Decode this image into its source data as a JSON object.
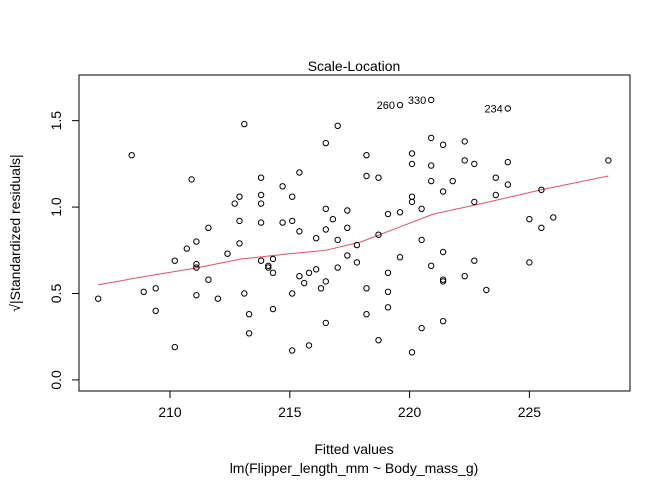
{
  "chart_data": {
    "type": "scatter",
    "title": "Scale-Location",
    "xlabel": "Fitted values",
    "subtitle": "lm(Flipper_length_mm ~ Body_mass_g)",
    "ylabel": "√|Standardized residuals|",
    "xlim": [
      206.2,
      229.2
    ],
    "ylim": [
      -0.064,
      1.764
    ],
    "x_ticks": [
      210,
      215,
      220,
      225
    ],
    "y_ticks": [
      0.0,
      0.5,
      1.0,
      1.5
    ],
    "x_tick_labels": [
      "210",
      "215",
      "220",
      "225"
    ],
    "y_tick_labels": [
      "0.0",
      "0.5",
      "1.0",
      "1.5"
    ],
    "grid": false,
    "point_color": "#000000",
    "smooth_color": "#DF536B",
    "points": [
      {
        "x": 207.0,
        "y": 0.47
      },
      {
        "x": 208.4,
        "y": 1.3
      },
      {
        "x": 208.9,
        "y": 0.51
      },
      {
        "x": 209.4,
        "y": 0.4
      },
      {
        "x": 209.4,
        "y": 0.53
      },
      {
        "x": 210.2,
        "y": 0.19
      },
      {
        "x": 210.2,
        "y": 0.69
      },
      {
        "x": 210.7,
        "y": 0.76
      },
      {
        "x": 210.9,
        "y": 1.16
      },
      {
        "x": 211.1,
        "y": 0.8
      },
      {
        "x": 211.1,
        "y": 0.67
      },
      {
        "x": 211.1,
        "y": 0.65
      },
      {
        "x": 211.1,
        "y": 0.49
      },
      {
        "x": 211.6,
        "y": 0.88
      },
      {
        "x": 211.6,
        "y": 0.58
      },
      {
        "x": 212.0,
        "y": 0.47
      },
      {
        "x": 212.4,
        "y": 0.73
      },
      {
        "x": 212.7,
        "y": 1.02
      },
      {
        "x": 212.9,
        "y": 1.06
      },
      {
        "x": 212.9,
        "y": 0.92
      },
      {
        "x": 212.9,
        "y": 0.79
      },
      {
        "x": 213.1,
        "y": 1.48
      },
      {
        "x": 213.1,
        "y": 0.5
      },
      {
        "x": 213.3,
        "y": 0.38
      },
      {
        "x": 213.3,
        "y": 0.27
      },
      {
        "x": 213.8,
        "y": 1.17
      },
      {
        "x": 213.8,
        "y": 1.07
      },
      {
        "x": 213.8,
        "y": 1.02
      },
      {
        "x": 213.8,
        "y": 0.91
      },
      {
        "x": 213.8,
        "y": 0.69
      },
      {
        "x": 214.1,
        "y": 0.66
      },
      {
        "x": 214.1,
        "y": 0.65
      },
      {
        "x": 214.3,
        "y": 0.7
      },
      {
        "x": 214.3,
        "y": 0.62
      },
      {
        "x": 214.3,
        "y": 0.41
      },
      {
        "x": 214.7,
        "y": 1.12
      },
      {
        "x": 214.7,
        "y": 0.91
      },
      {
        "x": 215.1,
        "y": 1.06
      },
      {
        "x": 215.1,
        "y": 0.92
      },
      {
        "x": 215.1,
        "y": 0.5
      },
      {
        "x": 215.1,
        "y": 0.17
      },
      {
        "x": 215.4,
        "y": 1.2
      },
      {
        "x": 215.4,
        "y": 0.86
      },
      {
        "x": 215.4,
        "y": 0.6
      },
      {
        "x": 215.6,
        "y": 0.56
      },
      {
        "x": 215.8,
        "y": 0.62
      },
      {
        "x": 215.8,
        "y": 0.2
      },
      {
        "x": 216.1,
        "y": 0.82
      },
      {
        "x": 216.1,
        "y": 0.64
      },
      {
        "x": 216.3,
        "y": 0.53
      },
      {
        "x": 216.5,
        "y": 1.37
      },
      {
        "x": 216.5,
        "y": 0.99
      },
      {
        "x": 216.5,
        "y": 0.87
      },
      {
        "x": 216.5,
        "y": 0.57
      },
      {
        "x": 216.5,
        "y": 0.33
      },
      {
        "x": 216.8,
        "y": 0.93
      },
      {
        "x": 217.0,
        "y": 1.47
      },
      {
        "x": 217.0,
        "y": 0.81
      },
      {
        "x": 217.0,
        "y": 0.65
      },
      {
        "x": 217.4,
        "y": 0.98
      },
      {
        "x": 217.4,
        "y": 0.88
      },
      {
        "x": 217.4,
        "y": 0.72
      },
      {
        "x": 217.8,
        "y": 0.78
      },
      {
        "x": 217.8,
        "y": 0.68
      },
      {
        "x": 218.2,
        "y": 1.3
      },
      {
        "x": 218.2,
        "y": 1.18
      },
      {
        "x": 218.2,
        "y": 0.53
      },
      {
        "x": 218.2,
        "y": 0.38
      },
      {
        "x": 218.7,
        "y": 1.17
      },
      {
        "x": 218.7,
        "y": 0.84
      },
      {
        "x": 218.7,
        "y": 0.23
      },
      {
        "x": 219.1,
        "y": 0.96
      },
      {
        "x": 219.1,
        "y": 0.62
      },
      {
        "x": 219.1,
        "y": 0.51
      },
      {
        "x": 219.1,
        "y": 0.42
      },
      {
        "x": 219.6,
        "y": 1.59
      },
      {
        "x": 219.6,
        "y": 0.97
      },
      {
        "x": 219.6,
        "y": 0.71
      },
      {
        "x": 220.1,
        "y": 1.31
      },
      {
        "x": 220.1,
        "y": 1.25
      },
      {
        "x": 220.1,
        "y": 1.06
      },
      {
        "x": 220.1,
        "y": 1.03
      },
      {
        "x": 220.1,
        "y": 0.16
      },
      {
        "x": 220.5,
        "y": 0.99
      },
      {
        "x": 220.5,
        "y": 0.81
      },
      {
        "x": 220.5,
        "y": 0.3
      },
      {
        "x": 220.9,
        "y": 1.62
      },
      {
        "x": 220.9,
        "y": 1.4
      },
      {
        "x": 220.9,
        "y": 1.24
      },
      {
        "x": 220.9,
        "y": 1.15
      },
      {
        "x": 220.9,
        "y": 0.66
      },
      {
        "x": 221.4,
        "y": 1.36
      },
      {
        "x": 221.4,
        "y": 1.09
      },
      {
        "x": 221.4,
        "y": 0.74
      },
      {
        "x": 221.4,
        "y": 0.58
      },
      {
        "x": 221.4,
        "y": 0.57
      },
      {
        "x": 221.4,
        "y": 0.34
      },
      {
        "x": 221.8,
        "y": 1.15
      },
      {
        "x": 222.3,
        "y": 1.38
      },
      {
        "x": 222.3,
        "y": 1.27
      },
      {
        "x": 222.3,
        "y": 0.6
      },
      {
        "x": 222.7,
        "y": 1.25
      },
      {
        "x": 222.7,
        "y": 1.03
      },
      {
        "x": 222.7,
        "y": 0.69
      },
      {
        "x": 223.2,
        "y": 0.52
      },
      {
        "x": 223.6,
        "y": 1.17
      },
      {
        "x": 223.6,
        "y": 1.07
      },
      {
        "x": 224.1,
        "y": 1.57
      },
      {
        "x": 224.1,
        "y": 1.26
      },
      {
        "x": 224.1,
        "y": 1.13
      },
      {
        "x": 225.0,
        "y": 0.93
      },
      {
        "x": 225.0,
        "y": 0.68
      },
      {
        "x": 225.5,
        "y": 1.1
      },
      {
        "x": 225.5,
        "y": 0.88
      },
      {
        "x": 226.0,
        "y": 0.94
      },
      {
        "x": 228.3,
        "y": 1.27
      }
    ],
    "annotations": [
      {
        "text": "260",
        "x": 219.6,
        "y": 1.59
      },
      {
        "text": "330",
        "x": 220.9,
        "y": 1.62
      },
      {
        "text": "234",
        "x": 224.1,
        "y": 1.57
      }
    ],
    "smooth_line": [
      {
        "x": 207.0,
        "y": 0.55
      },
      {
        "x": 209.0,
        "y": 0.6
      },
      {
        "x": 211.0,
        "y": 0.645
      },
      {
        "x": 213.0,
        "y": 0.7
      },
      {
        "x": 215.0,
        "y": 0.73
      },
      {
        "x": 216.5,
        "y": 0.75
      },
      {
        "x": 218.0,
        "y": 0.8
      },
      {
        "x": 219.5,
        "y": 0.88
      },
      {
        "x": 221.0,
        "y": 0.96
      },
      {
        "x": 223.0,
        "y": 1.02
      },
      {
        "x": 225.5,
        "y": 1.1
      },
      {
        "x": 228.3,
        "y": 1.18
      }
    ]
  }
}
